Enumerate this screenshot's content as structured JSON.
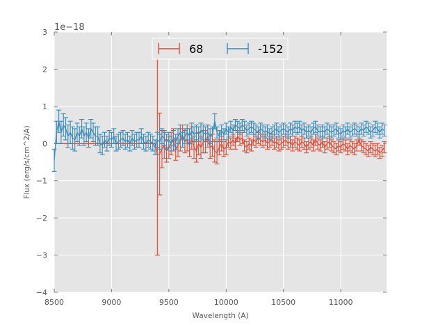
{
  "chart_data": {
    "type": "line",
    "subtype": "errorbar",
    "title": "",
    "xlabel": "Wavelength (A)",
    "ylabel": "Flux (erg/s/cm^2/A)",
    "xlim": [
      8500,
      11400
    ],
    "ylim": [
      -4,
      3
    ],
    "y_scale_label": "1e−18",
    "xticks": [
      8500,
      9000,
      9500,
      10000,
      10500,
      11000
    ],
    "xtick_labels": [
      "8500",
      "9000",
      "9500",
      "10000",
      "10500",
      "11000"
    ],
    "yticks": [
      -4,
      -3,
      -2,
      -1,
      0,
      1,
      2,
      3
    ],
    "ytick_labels": [
      "−4",
      "−3",
      "−2",
      "−1",
      "0",
      "1",
      "2",
      "3"
    ],
    "grid": true,
    "legend_position": "top-center",
    "colors": {
      "background": "#e5e5e5",
      "grid": "#ffffff",
      "tick_text": "#555555"
    },
    "series": [
      {
        "name": "68",
        "color": "#e24a33",
        "x": [
          8500,
          9380,
          9400,
          9420,
          9440,
          9460,
          9480,
          9500,
          9520,
          9540,
          9560,
          9580,
          9600,
          9620,
          9640,
          9660,
          9680,
          9700,
          9720,
          9740,
          9760,
          9780,
          9800,
          9820,
          9840,
          9860,
          9880,
          9900,
          9920,
          9940,
          9960,
          9980,
          10000,
          10020,
          10040,
          10060,
          10080,
          10100,
          10120,
          10140,
          10160,
          10180,
          10200,
          10220,
          10240,
          10260,
          10280,
          10300,
          10320,
          10340,
          10360,
          10380,
          10400,
          10420,
          10440,
          10460,
          10480,
          10500,
          10520,
          10540,
          10560,
          10580,
          10600,
          10620,
          10640,
          10660,
          10680,
          10700,
          10720,
          10740,
          10760,
          10780,
          10800,
          10820,
          10840,
          10860,
          10880,
          10900,
          10920,
          10940,
          10960,
          10980,
          11000,
          11020,
          11040,
          11060,
          11080,
          11100,
          11120,
          11140,
          11160,
          11180,
          11200,
          11220,
          11240,
          11260,
          11280,
          11300,
          11320,
          11340,
          11360,
          11380
        ],
        "y": [
          0.0,
          0.0,
          -0.3,
          -0.28,
          -0.15,
          -0.05,
          -0.2,
          -0.1,
          0.0,
          0.1,
          -0.15,
          -0.05,
          0.1,
          0.2,
          0.05,
          0.1,
          -0.05,
          0.15,
          -0.1,
          -0.2,
          0.0,
          -0.1,
          0.05,
          0.05,
          0.2,
          -0.1,
          -0.05,
          -0.2,
          -0.25,
          -0.1,
          0.0,
          -0.15,
          -0.1,
          0.05,
          0.0,
          0.1,
          0.0,
          0.2,
          0.1,
          0.15,
          -0.05,
          -0.1,
          0.0,
          -0.05,
          0.1,
          0.05,
          0.15,
          0.1,
          0.05,
          0.1,
          0.0,
          0.05,
          0.1,
          0.0,
          0.05,
          -0.05,
          0.0,
          0.05,
          0.1,
          0.0,
          0.05,
          -0.05,
          0.05,
          0.0,
          -0.05,
          0.05,
          0.0,
          -0.1,
          0.0,
          0.05,
          -0.05,
          0.1,
          0.0,
          -0.05,
          0.05,
          -0.1,
          0.0,
          0.05,
          -0.05,
          -0.1,
          -0.15,
          -0.05,
          -0.1,
          0.0,
          -0.05,
          -0.15,
          -0.05,
          -0.1,
          -0.15,
          -0.05,
          0.1,
          -0.05,
          -0.1,
          -0.15,
          -0.2,
          -0.1,
          -0.15,
          -0.2,
          -0.15,
          -0.25,
          -0.2,
          -0.1
        ],
        "err": [
          0.0,
          0.0,
          2.7,
          1.1,
          0.5,
          0.35,
          0.3,
          0.3,
          0.3,
          0.3,
          0.3,
          0.3,
          0.3,
          0.3,
          0.3,
          0.3,
          0.3,
          0.3,
          0.3,
          0.3,
          0.3,
          0.3,
          0.3,
          0.3,
          0.3,
          0.3,
          0.3,
          0.3,
          0.3,
          0.2,
          0.2,
          0.2,
          0.2,
          0.15,
          0.15,
          0.15,
          0.15,
          0.15,
          0.15,
          0.15,
          0.15,
          0.15,
          0.15,
          0.15,
          0.15,
          0.15,
          0.15,
          0.15,
          0.15,
          0.15,
          0.15,
          0.15,
          0.15,
          0.15,
          0.15,
          0.15,
          0.15,
          0.15,
          0.15,
          0.15,
          0.15,
          0.15,
          0.15,
          0.15,
          0.15,
          0.15,
          0.15,
          0.15,
          0.15,
          0.15,
          0.15,
          0.15,
          0.15,
          0.15,
          0.15,
          0.15,
          0.15,
          0.15,
          0.15,
          0.15,
          0.15,
          0.15,
          0.15,
          0.15,
          0.15,
          0.15,
          0.15,
          0.15,
          0.15,
          0.15,
          0.15,
          0.15,
          0.15,
          0.15,
          0.15,
          0.15,
          0.15,
          0.15,
          0.15,
          0.15,
          0.15,
          0.15
        ]
      },
      {
        "name": "-152",
        "color": "#348abd",
        "x": [
          8500,
          8520,
          8540,
          8560,
          8580,
          8600,
          8620,
          8640,
          8660,
          8680,
          8700,
          8720,
          8740,
          8760,
          8780,
          8800,
          8820,
          8840,
          8860,
          8880,
          8900,
          8920,
          8940,
          8960,
          8980,
          9000,
          9020,
          9040,
          9060,
          9080,
          9100,
          9120,
          9140,
          9160,
          9180,
          9200,
          9220,
          9240,
          9260,
          9280,
          9300,
          9320,
          9340,
          9360,
          9380,
          9400,
          9420,
          9440,
          9460,
          9480,
          9500,
          9520,
          9540,
          9560,
          9580,
          9600,
          9620,
          9640,
          9660,
          9680,
          9700,
          9720,
          9740,
          9760,
          9780,
          9800,
          9820,
          9840,
          9860,
          9880,
          9900,
          9920,
          9940,
          9960,
          9980,
          10000,
          10020,
          10040,
          10060,
          10080,
          10100,
          10120,
          10140,
          10160,
          10180,
          10200,
          10220,
          10240,
          10260,
          10280,
          10300,
          10320,
          10340,
          10360,
          10380,
          10400,
          10420,
          10440,
          10460,
          10480,
          10500,
          10520,
          10540,
          10560,
          10580,
          10600,
          10620,
          10640,
          10660,
          10680,
          10700,
          10720,
          10740,
          10760,
          10780,
          10800,
          10820,
          10840,
          10860,
          10880,
          10900,
          10920,
          10940,
          10960,
          10980,
          11000,
          11020,
          11040,
          11060,
          11080,
          11100,
          11120,
          11140,
          11160,
          11180,
          11200,
          11220,
          11240,
          11260,
          11280,
          11300,
          11320,
          11340,
          11360,
          11380
        ],
        "y": [
          -0.45,
          0.3,
          0.6,
          0.3,
          0.5,
          0.4,
          0.2,
          0.3,
          0.15,
          0.1,
          0.3,
          0.2,
          0.4,
          0.2,
          0.3,
          0.15,
          0.4,
          0.3,
          0.2,
          0.2,
          0.0,
          -0.05,
          0.1,
          0.0,
          0.15,
          0.1,
          0.2,
          0.0,
          0.05,
          0.1,
          0.15,
          0.05,
          0.1,
          0.0,
          0.15,
          0.05,
          0.1,
          0.1,
          0.2,
          0.05,
          0.0,
          0.1,
          0.05,
          0.0,
          -0.1,
          0.1,
          0.05,
          0.2,
          0.15,
          0.05,
          0.1,
          0.0,
          0.15,
          0.05,
          0.2,
          0.3,
          0.1,
          0.2,
          0.3,
          0.2,
          0.35,
          0.25,
          0.3,
          0.25,
          0.35,
          0.3,
          0.25,
          0.3,
          0.2,
          0.25,
          0.6,
          0.3,
          0.2,
          0.35,
          0.25,
          0.4,
          0.3,
          0.45,
          0.35,
          0.5,
          0.45,
          0.4,
          0.5,
          0.45,
          0.35,
          0.4,
          0.45,
          0.4,
          0.35,
          0.3,
          0.4,
          0.35,
          0.3,
          0.35,
          0.25,
          0.3,
          0.35,
          0.4,
          0.3,
          0.35,
          0.4,
          0.35,
          0.3,
          0.4,
          0.35,
          0.45,
          0.4,
          0.45,
          0.35,
          0.4,
          0.3,
          0.35,
          0.3,
          0.4,
          0.45,
          0.35,
          0.3,
          0.35,
          0.3,
          0.4,
          0.35,
          0.3,
          0.35,
          0.4,
          0.3,
          0.25,
          0.35,
          0.3,
          0.4,
          0.3,
          0.35,
          0.4,
          0.35,
          0.3,
          0.4,
          0.35,
          0.45,
          0.4,
          0.3,
          0.35,
          0.45,
          0.4,
          0.3,
          0.4,
          0.35
        ],
        "err": [
          0.3,
          0.3,
          0.3,
          0.3,
          0.3,
          0.3,
          0.3,
          0.3,
          0.3,
          0.3,
          0.25,
          0.25,
          0.25,
          0.25,
          0.25,
          0.25,
          0.25,
          0.25,
          0.25,
          0.25,
          0.25,
          0.25,
          0.2,
          0.2,
          0.2,
          0.2,
          0.2,
          0.2,
          0.2,
          0.2,
          0.2,
          0.2,
          0.2,
          0.2,
          0.2,
          0.2,
          0.2,
          0.2,
          0.2,
          0.2,
          0.2,
          0.2,
          0.2,
          0.2,
          0.2,
          0.2,
          0.2,
          0.2,
          0.2,
          0.2,
          0.2,
          0.2,
          0.2,
          0.2,
          0.2,
          0.2,
          0.2,
          0.2,
          0.2,
          0.2,
          0.2,
          0.2,
          0.2,
          0.2,
          0.2,
          0.2,
          0.2,
          0.2,
          0.2,
          0.2,
          0.2,
          0.15,
          0.15,
          0.15,
          0.15,
          0.15,
          0.15,
          0.15,
          0.15,
          0.15,
          0.15,
          0.15,
          0.15,
          0.15,
          0.15,
          0.15,
          0.15,
          0.15,
          0.15,
          0.15,
          0.15,
          0.15,
          0.15,
          0.15,
          0.15,
          0.15,
          0.15,
          0.15,
          0.15,
          0.15,
          0.15,
          0.15,
          0.15,
          0.15,
          0.15,
          0.15,
          0.15,
          0.15,
          0.15,
          0.15,
          0.15,
          0.15,
          0.15,
          0.15,
          0.15,
          0.15,
          0.15,
          0.15,
          0.15,
          0.15,
          0.15,
          0.15,
          0.15,
          0.15,
          0.15,
          0.15,
          0.15,
          0.15,
          0.15,
          0.15,
          0.15,
          0.15,
          0.15,
          0.15,
          0.15,
          0.15,
          0.15,
          0.15,
          0.15,
          0.15,
          0.15,
          0.15,
          0.15,
          0.15,
          0.15
        ]
      }
    ]
  }
}
